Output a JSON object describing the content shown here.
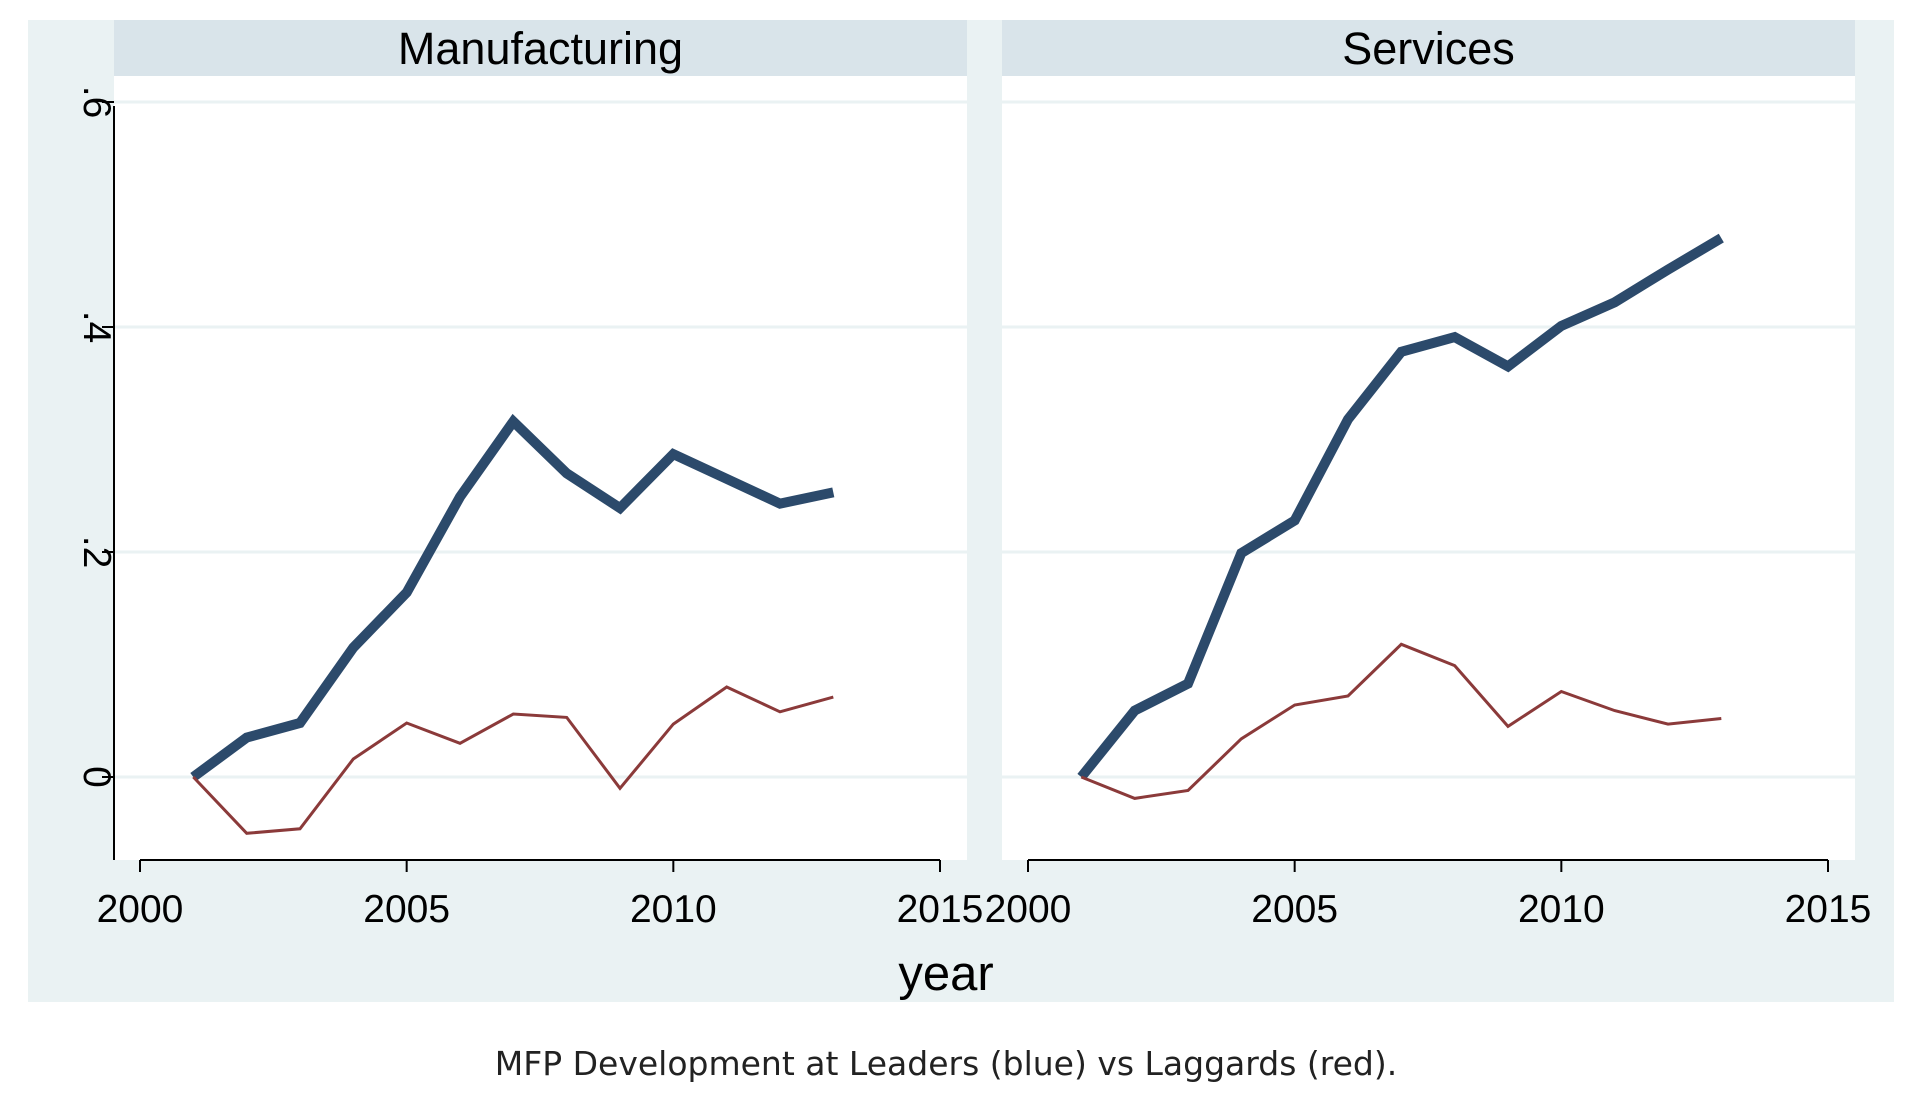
{
  "caption": "MFP Development at Leaders (blue) vs Laggards (red).",
  "colors": {
    "outer_background": "#eaf2f3",
    "panel_header": "#d9e4ea",
    "plot_background": "#ffffff",
    "grid": "#eaf2f3",
    "leaders": "#2c4a6b",
    "laggards": "#8b3a3a"
  },
  "chart_data": {
    "type": "line",
    "xlabel": "year",
    "ylabel": "",
    "xlim": [
      2000,
      2015
    ],
    "ylim": [
      -0.075,
      0.6
    ],
    "x_ticks": [
      2000,
      2005,
      2010,
      2015
    ],
    "x_tick_labels": [
      "2000",
      "2005",
      "2010",
      "2015"
    ],
    "y_ticks": [
      0,
      0.2,
      0.4,
      0.6
    ],
    "y_tick_labels": [
      "0",
      ".2",
      ".4",
      ".6"
    ],
    "grid": true,
    "panels": [
      {
        "title": "Manufacturing",
        "x": [
          2001,
          2002,
          2003,
          2004,
          2005,
          2006,
          2007,
          2008,
          2009,
          2010,
          2011,
          2012,
          2013
        ],
        "series": [
          {
            "role": "leaders",
            "values": [
              0.0,
              0.035,
              0.048,
              0.115,
              0.164,
              0.249,
              0.316,
              0.27,
              0.239,
              0.287,
              0.265,
              0.243,
              0.253
            ]
          },
          {
            "role": "laggards",
            "values": [
              0.0,
              -0.05,
              -0.046,
              0.016,
              0.048,
              0.03,
              0.056,
              0.053,
              -0.01,
              0.047,
              0.08,
              0.058,
              0.071
            ]
          }
        ]
      },
      {
        "title": "Services",
        "x": [
          2001,
          2002,
          2003,
          2004,
          2005,
          2006,
          2007,
          2008,
          2009,
          2010,
          2011,
          2012,
          2013
        ],
        "series": [
          {
            "role": "leaders",
            "values": [
              0.0,
              0.059,
              0.083,
              0.199,
              0.228,
              0.318,
              0.378,
              0.391,
              0.365,
              0.401,
              0.422,
              0.451,
              0.479
            ]
          },
          {
            "role": "laggards",
            "values": [
              0.0,
              -0.019,
              -0.012,
              0.034,
              0.064,
              0.072,
              0.118,
              0.099,
              0.045,
              0.076,
              0.059,
              0.047,
              0.052
            ]
          }
        ]
      }
    ]
  }
}
